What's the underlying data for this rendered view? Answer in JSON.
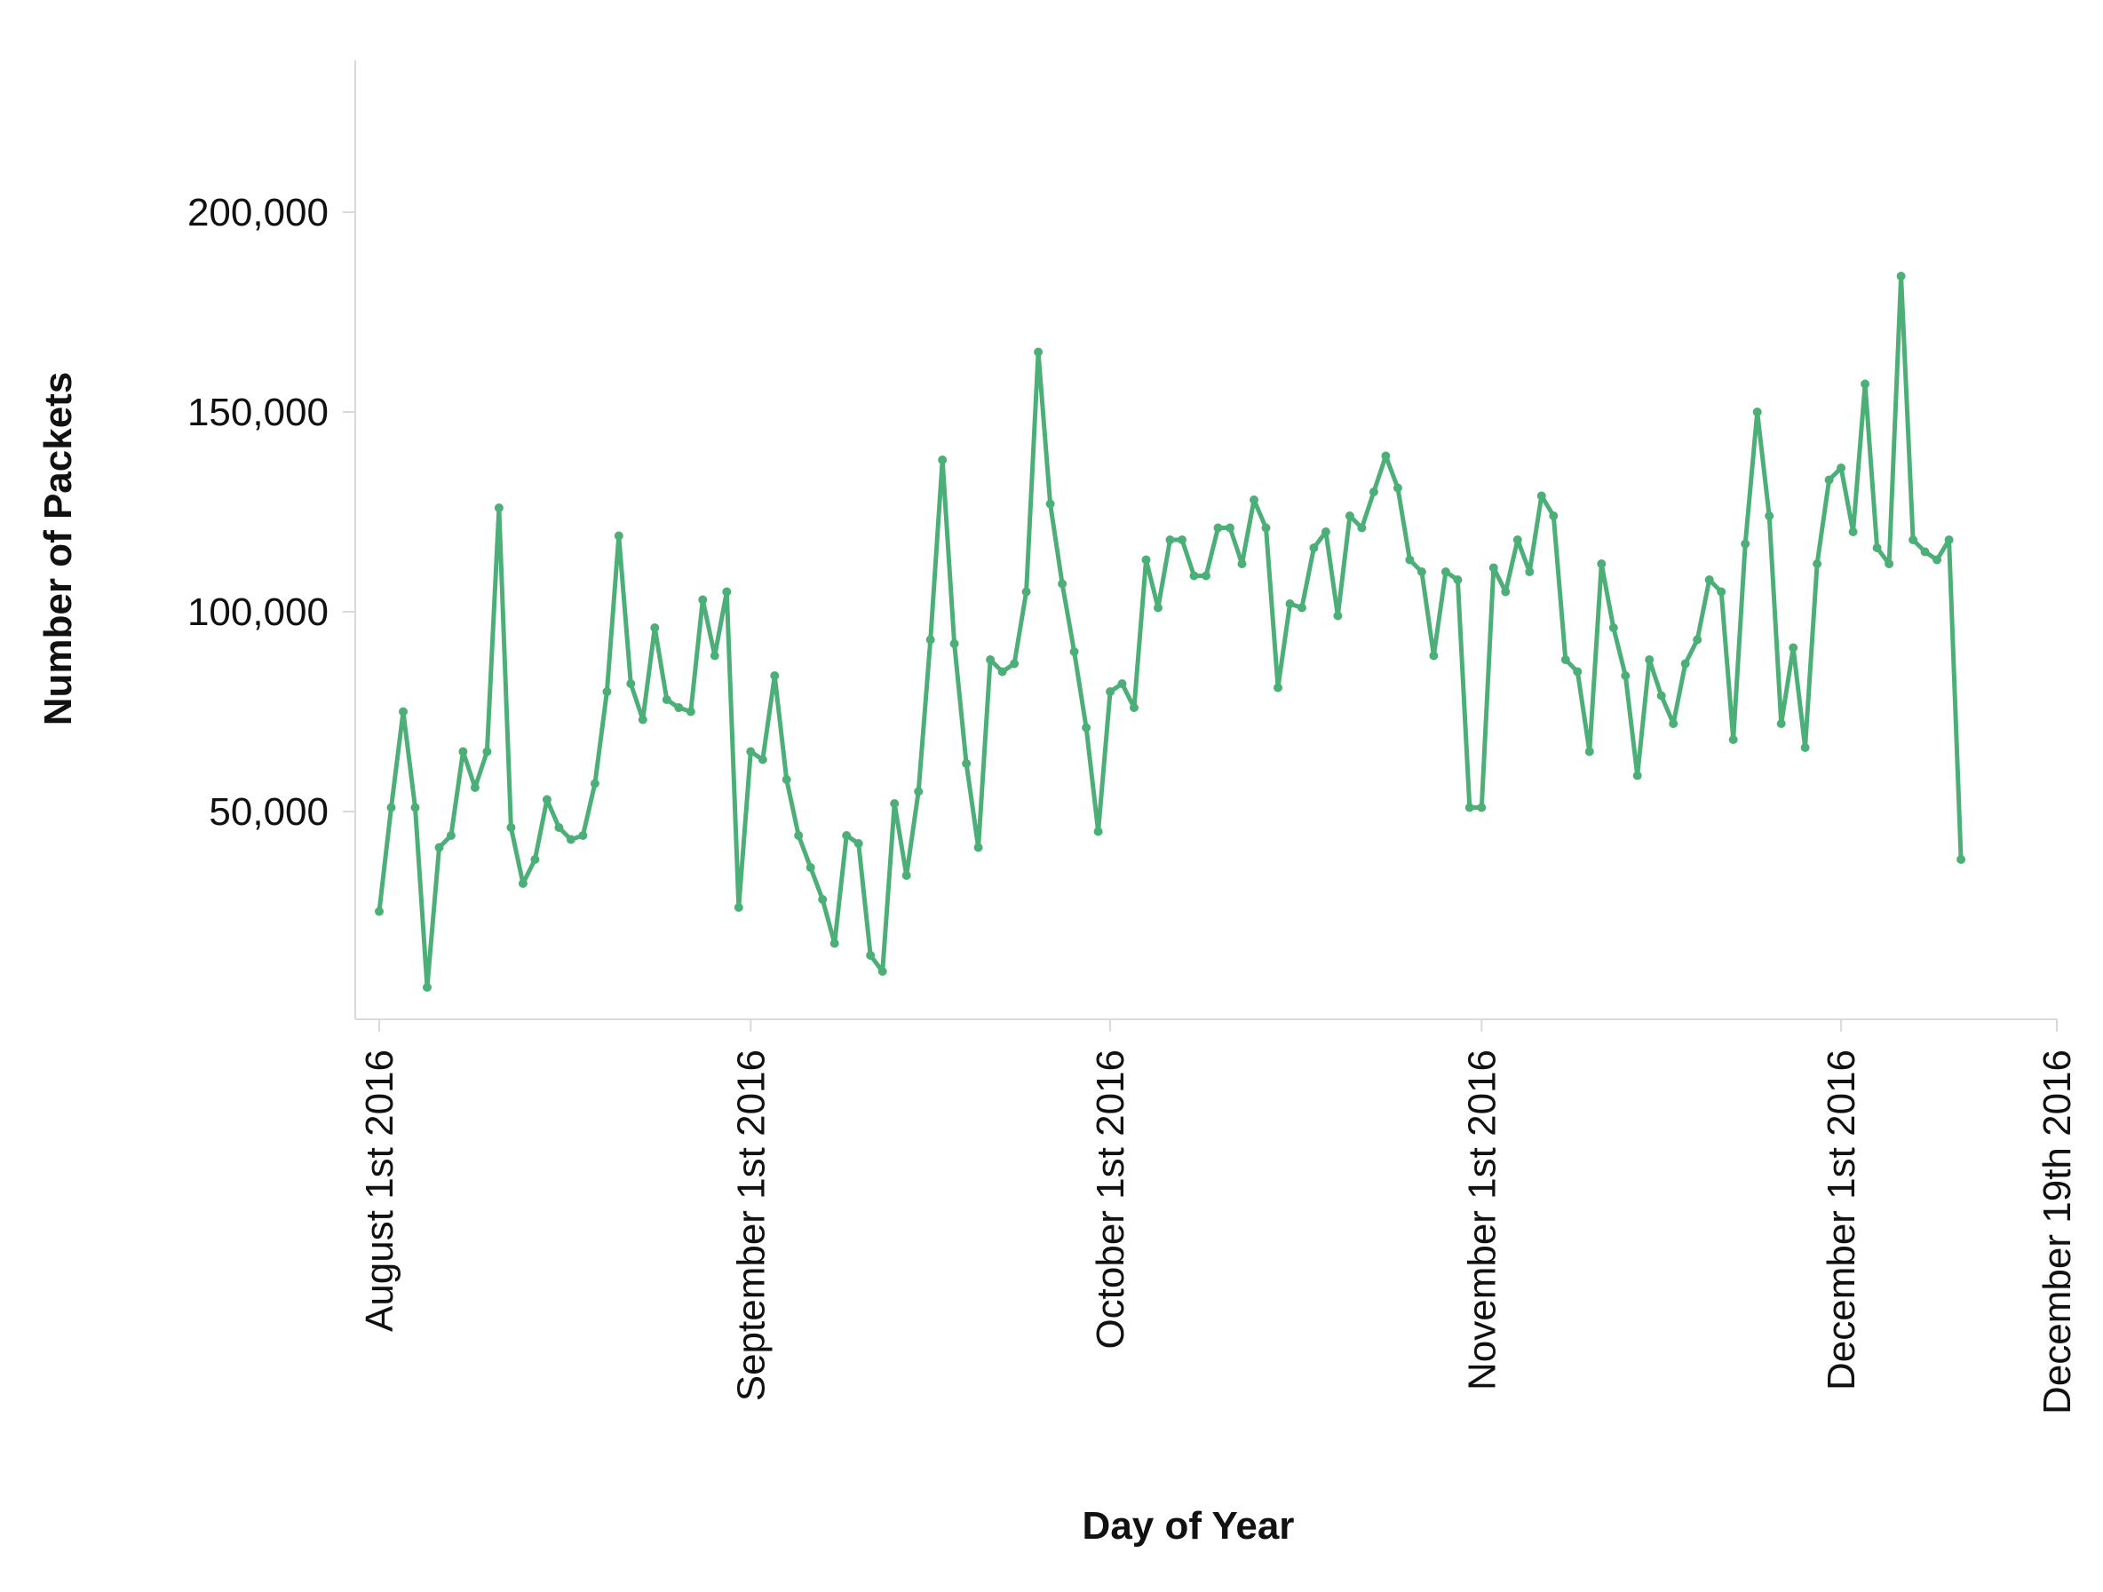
{
  "chart_data": {
    "type": "line",
    "title": "",
    "xlabel": "Day of Year",
    "ylabel": "Number of Packets",
    "ylim": [
      -2000,
      238000
    ],
    "xlim": [
      -2,
      140
    ],
    "y_ticks": [
      {
        "value": 50000,
        "label": "50,000"
      },
      {
        "value": 100000,
        "label": "100,000"
      },
      {
        "value": 150000,
        "label": "150,000"
      },
      {
        "value": 200000,
        "label": "200,000"
      }
    ],
    "x_ticks": [
      {
        "day": 0,
        "label": "August 1st 2016"
      },
      {
        "day": 31,
        "label": "September 1st 2016"
      },
      {
        "day": 61,
        "label": "October 1st 2016"
      },
      {
        "day": 92,
        "label": "November 1st 2016"
      },
      {
        "day": 122,
        "label": "December 1st 2016"
      },
      {
        "day": 140,
        "label": "December 19th 2016"
      }
    ],
    "series": [
      {
        "name": "Number of Packets",
        "color": "#4caf78",
        "values": [
          25000,
          51000,
          75000,
          51000,
          6000,
          41000,
          44000,
          65000,
          56000,
          65000,
          126000,
          46000,
          32000,
          38000,
          53000,
          46000,
          43000,
          44000,
          57000,
          80000,
          119000,
          82000,
          73000,
          96000,
          78000,
          76000,
          75000,
          103000,
          89000,
          105000,
          26000,
          65000,
          63000,
          84000,
          58000,
          44000,
          36000,
          28000,
          17000,
          44000,
          42000,
          14000,
          10000,
          52000,
          34000,
          55000,
          93000,
          138000,
          92000,
          62000,
          41000,
          88000,
          85000,
          87000,
          105000,
          165000,
          127000,
          107000,
          90000,
          71000,
          45000,
          80000,
          82000,
          76000,
          113000,
          101000,
          118000,
          118000,
          109000,
          109000,
          121000,
          121000,
          112000,
          128000,
          121000,
          81000,
          102000,
          101000,
          116000,
          120000,
          99000,
          124000,
          121000,
          130000,
          139000,
          131000,
          113000,
          110000,
          89000,
          110000,
          108000,
          51000,
          51000,
          111000,
          105000,
          118000,
          110000,
          129000,
          124000,
          88000,
          85000,
          65000,
          112000,
          96000,
          84000,
          59000,
          88000,
          79000,
          72000,
          87000,
          93000,
          108000,
          105000,
          68000,
          117000,
          150000,
          124000,
          72000,
          91000,
          66000,
          112000,
          133000,
          136000,
          120000,
          157000,
          116000,
          112000,
          184000,
          118000,
          115000,
          113000,
          118000,
          38000
        ]
      }
    ]
  }
}
